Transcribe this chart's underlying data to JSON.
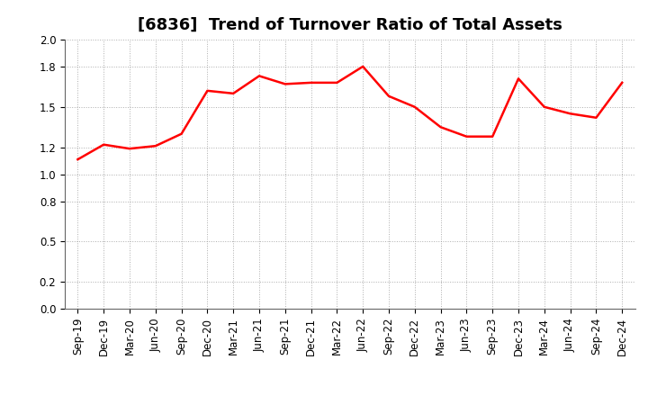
{
  "title": "[6836]  Trend of Turnover Ratio of Total Assets",
  "x_labels": [
    "Sep-19",
    "Dec-19",
    "Mar-20",
    "Jun-20",
    "Sep-20",
    "Dec-20",
    "Mar-21",
    "Jun-21",
    "Sep-21",
    "Dec-21",
    "Mar-22",
    "Jun-22",
    "Sep-22",
    "Dec-22",
    "Mar-23",
    "Jun-23",
    "Sep-23",
    "Dec-23",
    "Mar-24",
    "Jun-24",
    "Sep-24",
    "Dec-24"
  ],
  "y_values": [
    1.11,
    1.22,
    1.19,
    1.21,
    1.3,
    1.62,
    1.6,
    1.73,
    1.67,
    1.68,
    1.68,
    1.8,
    1.58,
    1.5,
    1.35,
    1.28,
    1.28,
    1.71,
    1.5,
    1.45,
    1.42,
    1.68
  ],
  "line_color": "#ff0000",
  "line_width": 1.8,
  "ylim": [
    0.0,
    2.0
  ],
  "ytick_vals": [
    0.0,
    0.2,
    0.5,
    0.8,
    1.0,
    1.2,
    1.5,
    1.8,
    2.0
  ],
  "background_color": "#ffffff",
  "grid_color": "#999999",
  "title_fontsize": 13,
  "axis_fontsize": 8.5
}
